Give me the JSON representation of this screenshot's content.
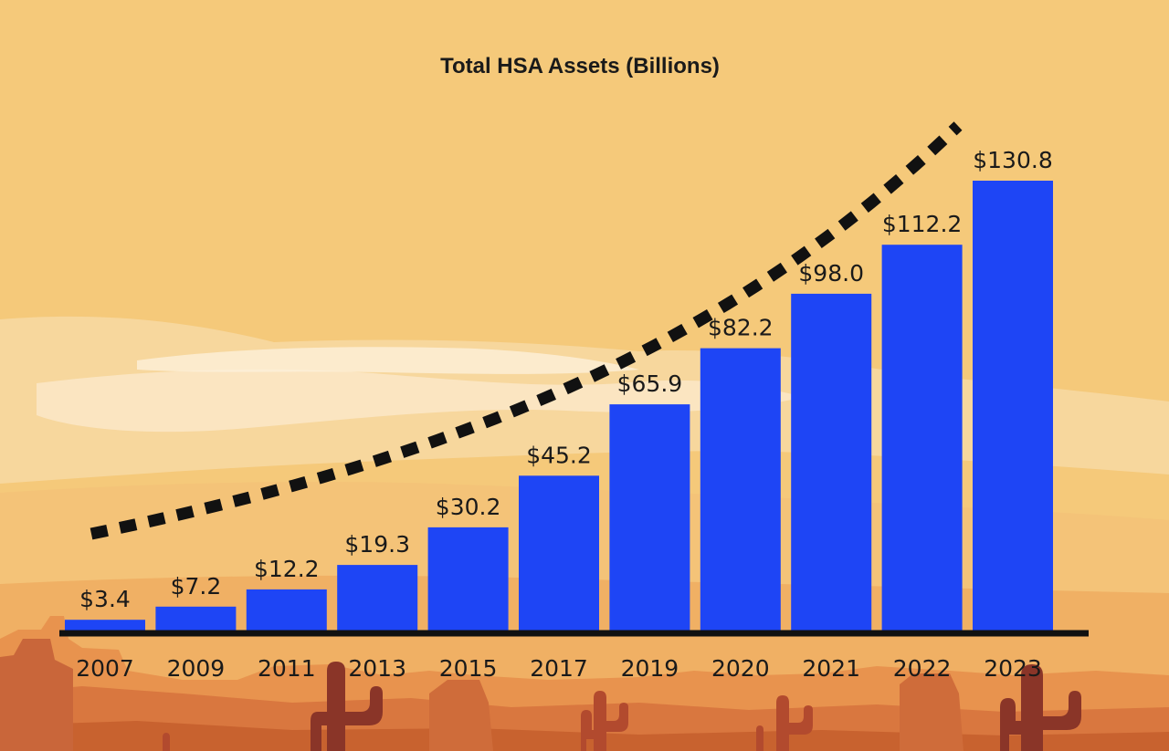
{
  "chart_data": {
    "type": "bar",
    "title": "Total HSA Assets (Billions)",
    "xlabel": "",
    "ylabel": "",
    "categories": [
      "2007",
      "2009",
      "2011",
      "2013",
      "2015",
      "2017",
      "2019",
      "2020",
      "2021",
      "2022",
      "2023"
    ],
    "values": [
      3.4,
      7.2,
      12.2,
      19.3,
      30.2,
      45.2,
      65.9,
      82.2,
      98.0,
      112.2,
      130.8
    ],
    "value_labels": [
      "$3.4",
      "$7.2",
      "$12.2",
      "$19.3",
      "$30.2",
      "$45.2",
      "$65.9",
      "$82.2",
      "$98.0",
      "$112.2",
      "$130.8"
    ],
    "ylim": [
      0,
      150
    ],
    "grid": false,
    "trend_line": "dashed upward curve"
  },
  "colors": {
    "bar": "#1e45f5",
    "background_sky": "#f5c97a",
    "axis": "#111111",
    "trend": "#111111"
  }
}
